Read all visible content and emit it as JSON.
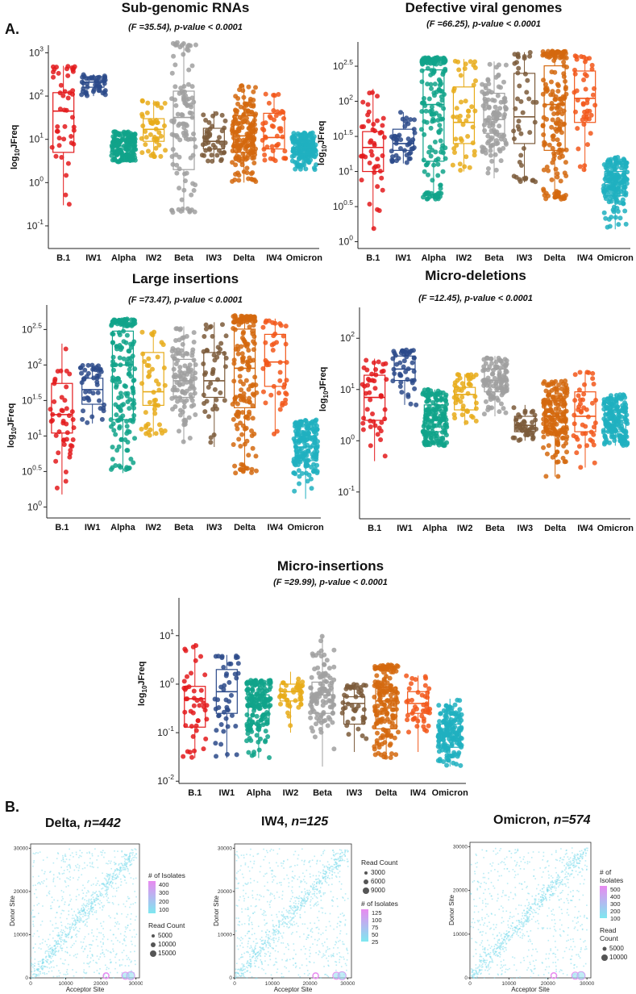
{
  "sections": {
    "a": "A.",
    "b": "B."
  },
  "groups": [
    "B.1",
    "IW1",
    "Alpha",
    "IW2",
    "Beta",
    "IW3",
    "Delta",
    "IW4",
    "Omicron"
  ],
  "group_colors": [
    "#e31a1c",
    "#2b4a8a",
    "#10a38a",
    "#e7ab1a",
    "#a0a0a0",
    "#7b5a3a",
    "#d4680e",
    "#f2571a",
    "#20b0c0"
  ],
  "chart_data": [
    {
      "id": "sgrna",
      "type": "scatter",
      "title": "Sub-genomic RNAs",
      "stat": "(F =35.54), p-value < 0.0001",
      "ylabel_main": "log",
      "ylabel_sub": "10",
      "ylabel_tail": "JFreq",
      "yscale": "log",
      "ylim": [
        0.03,
        1500
      ],
      "yticks": [
        {
          "v": 0.1,
          "l": "10"
        },
        {
          "v": 1,
          "l": "10"
        },
        {
          "v": 10,
          "l": "10"
        },
        {
          "v": 100,
          "l": "10"
        },
        {
          "v": 1000,
          "l": "10"
        }
      ],
      "ytick_exps": [
        "-1",
        "0",
        "1",
        "2",
        "3"
      ],
      "boxes": [
        {
          "group": "B.1",
          "min": 0.3,
          "q1": 5,
          "median": 45,
          "q3": 120,
          "max": 500
        },
        {
          "group": "IW1",
          "min": 100,
          "q1": 160,
          "median": 210,
          "q3": 280,
          "max": 320
        },
        {
          "group": "Alpha",
          "min": 3,
          "q1": 4.5,
          "median": 7,
          "q3": 10,
          "max": 15
        },
        {
          "group": "IW2",
          "min": 4,
          "q1": 9,
          "median": 17,
          "q3": 30,
          "max": 80
        },
        {
          "group": "Beta",
          "min": 0.2,
          "q1": 2,
          "median": 32,
          "q3": 130,
          "max": 1800
        },
        {
          "group": "IW3",
          "min": 3,
          "q1": 6,
          "median": 9,
          "q3": 18,
          "max": 45
        },
        {
          "group": "Delta",
          "min": 1,
          "q1": 5,
          "median": 12,
          "q3": 35,
          "max": 180
        },
        {
          "group": "IW4",
          "min": 3,
          "q1": 6,
          "median": 11,
          "q3": 40,
          "max": 120
        },
        {
          "group": "Omicron",
          "min": 2,
          "q1": 4.5,
          "median": 6.5,
          "q3": 9,
          "max": 15
        }
      ]
    },
    {
      "id": "dvg",
      "type": "scatter",
      "title": "Defective viral genomes",
      "stat": "(F =66.25), p-value < 0.0001",
      "ylabel_main": "log",
      "ylabel_sub": "10",
      "ylabel_tail": "JFreq",
      "yscale": "log",
      "ylim": [
        0.8,
        700
      ],
      "yticks": [
        {
          "v": 1,
          "l": "10"
        },
        {
          "v": 3.16,
          "l": "10"
        },
        {
          "v": 10,
          "l": "10"
        },
        {
          "v": 31.6,
          "l": "10"
        },
        {
          "v": 100,
          "l": "10"
        },
        {
          "v": 316,
          "l": "10"
        }
      ],
      "ytick_exps": [
        "0",
        "0.5",
        "1",
        "1.5",
        "2",
        "2.5"
      ],
      "boxes": [
        {
          "group": "B.1",
          "min": 1.5,
          "q1": 10,
          "median": 22,
          "q3": 37,
          "max": 150
        },
        {
          "group": "IW1",
          "min": 13,
          "q1": 20,
          "median": 25,
          "q3": 40,
          "max": 70
        },
        {
          "group": "Alpha",
          "min": 4,
          "q1": 14,
          "median": 90,
          "q3": 280,
          "max": 420
        },
        {
          "group": "IW2",
          "min": 10,
          "q1": 25,
          "median": 50,
          "q3": 160,
          "max": 400
        },
        {
          "group": "Beta",
          "min": 8,
          "q1": 35,
          "median": 55,
          "q3": 130,
          "max": 370
        },
        {
          "group": "IW3",
          "min": 7,
          "q1": 25,
          "median": 60,
          "q3": 250,
          "max": 500
        },
        {
          "group": "Delta",
          "min": 4,
          "q1": 20,
          "median": 90,
          "q3": 320,
          "max": 520
        },
        {
          "group": "IW4",
          "min": 10,
          "q1": 50,
          "median": 110,
          "q3": 270,
          "max": 450
        },
        {
          "group": "Omicron",
          "min": 1.5,
          "q1": 4.5,
          "median": 7,
          "q3": 10,
          "max": 16
        }
      ]
    },
    {
      "id": "largeins",
      "type": "scatter",
      "title": "Large insertions",
      "stat": "(F =73.47), p-value < 0.0001",
      "ylabel_main": "log",
      "ylabel_sub": "10",
      "ylabel_tail": "JFreq",
      "yscale": "log",
      "ylim": [
        0.7,
        700
      ],
      "yticks": [
        {
          "v": 1,
          "l": "10"
        },
        {
          "v": 3.16,
          "l": "10"
        },
        {
          "v": 10,
          "l": "10"
        },
        {
          "v": 31.6,
          "l": "10"
        },
        {
          "v": 100,
          "l": "10"
        },
        {
          "v": 316,
          "l": "10"
        }
      ],
      "ytick_exps": [
        "0",
        "0.5",
        "1",
        "1.5",
        "2",
        "2.5"
      ],
      "boxes": [
        {
          "group": "B.1",
          "min": 1.5,
          "q1": 11,
          "median": 20,
          "q3": 55,
          "max": 200
        },
        {
          "group": "IW1",
          "min": 15,
          "q1": 28,
          "median": 45,
          "q3": 65,
          "max": 100
        },
        {
          "group": "Alpha",
          "min": 3,
          "q1": 17,
          "median": 100,
          "q3": 300,
          "max": 450
        },
        {
          "group": "IW2",
          "min": 10,
          "q1": 27,
          "median": 42,
          "q3": 150,
          "max": 300
        },
        {
          "group": "Beta",
          "min": 8,
          "q1": 35,
          "median": 60,
          "q3": 120,
          "max": 350
        },
        {
          "group": "IW3",
          "min": 7,
          "q1": 35,
          "median": 60,
          "q3": 150,
          "max": 400
        },
        {
          "group": "Delta",
          "min": 3,
          "q1": 25,
          "median": 90,
          "q3": 320,
          "max": 500
        },
        {
          "group": "IW4",
          "min": 10,
          "q1": 50,
          "median": 110,
          "q3": 270,
          "max": 450
        },
        {
          "group": "Omicron",
          "min": 1.3,
          "q1": 4.5,
          "median": 7,
          "q3": 10,
          "max": 17
        }
      ]
    },
    {
      "id": "microdel",
      "type": "scatter",
      "title": "Micro-deletions",
      "stat": "(F =12.45), p-value < 0.0001",
      "ylabel_main": "log",
      "ylabel_sub": "10",
      "ylabel_tail": "JFreq",
      "yscale": "log",
      "ylim": [
        0.03,
        400
      ],
      "yticks": [
        {
          "v": 0.1,
          "l": "10"
        },
        {
          "v": 1,
          "l": "10"
        },
        {
          "v": 10,
          "l": "10"
        },
        {
          "v": 100,
          "l": "10"
        }
      ],
      "ytick_exps": [
        "-1",
        "0",
        "1",
        "2"
      ],
      "boxes": [
        {
          "group": "B.1",
          "min": 0.4,
          "q1": 2.5,
          "median": 7,
          "q3": 19,
          "max": 40
        },
        {
          "group": "IW1",
          "min": 5,
          "q1": 15,
          "median": 25,
          "q3": 45,
          "max": 60
        },
        {
          "group": "Alpha",
          "min": 0.8,
          "q1": 1.5,
          "median": 2.5,
          "q3": 5,
          "max": 10
        },
        {
          "group": "IW2",
          "min": 2,
          "q1": 4,
          "median": 8,
          "q3": 11,
          "max": 20
        },
        {
          "group": "Beta",
          "min": 3,
          "q1": 9,
          "median": 15,
          "q3": 25,
          "max": 45
        },
        {
          "group": "IW3",
          "min": 1,
          "q1": 1.5,
          "median": 2,
          "q3": 3,
          "max": 5
        },
        {
          "group": "Delta",
          "min": 0.2,
          "q1": 1.5,
          "median": 3,
          "q3": 6,
          "max": 15
        },
        {
          "group": "IW4",
          "min": 0.3,
          "q1": 1.5,
          "median": 3,
          "q3": 9,
          "max": 22
        },
        {
          "group": "Omicron",
          "min": 0.8,
          "q1": 1.5,
          "median": 2.5,
          "q3": 4,
          "max": 8
        }
      ]
    },
    {
      "id": "microins",
      "type": "scatter",
      "title": "Micro-insertions",
      "stat": "(F =29.99), p-value < 0.0001",
      "ylabel_main": "log",
      "ylabel_sub": "10",
      "ylabel_tail": "JFreq",
      "yscale": "log",
      "ylim": [
        0.009,
        60
      ],
      "yticks": [
        {
          "v": 0.01,
          "l": "10"
        },
        {
          "v": 0.1,
          "l": "10"
        },
        {
          "v": 1,
          "l": "10"
        },
        {
          "v": 10,
          "l": "10"
        }
      ],
      "ytick_exps": [
        "-2",
        "-1",
        "0",
        "1"
      ],
      "boxes": [
        {
          "group": "B.1",
          "min": 0.03,
          "q1": 0.13,
          "median": 0.5,
          "q3": 0.9,
          "max": 7
        },
        {
          "group": "IW1",
          "min": 0.03,
          "q1": 0.25,
          "median": 0.7,
          "q3": 2,
          "max": 4
        },
        {
          "group": "Alpha",
          "min": 0.03,
          "q1": 0.15,
          "median": 0.35,
          "q3": 0.6,
          "max": 1.2
        },
        {
          "group": "IW2",
          "min": 0.1,
          "q1": 0.45,
          "median": 0.7,
          "q3": 1,
          "max": 1.8
        },
        {
          "group": "Beta",
          "min": 0.02,
          "q1": 0.25,
          "median": 0.6,
          "q3": 1.1,
          "max": 10
        },
        {
          "group": "IW3",
          "min": 0.04,
          "q1": 0.15,
          "median": 0.4,
          "q3": 0.55,
          "max": 1
        },
        {
          "group": "Delta",
          "min": 0.03,
          "q1": 0.12,
          "median": 0.45,
          "q3": 0.85,
          "max": 2.5
        },
        {
          "group": "IW4",
          "min": 0.04,
          "q1": 0.25,
          "median": 0.4,
          "q3": 0.7,
          "max": 1.5
        },
        {
          "group": "Omicron",
          "min": 0.02,
          "q1": 0.05,
          "median": 0.1,
          "q3": 0.15,
          "max": 0.5
        }
      ]
    }
  ],
  "heatmaps": [
    {
      "id": "delta",
      "title_name": "Delta",
      "title_n": "n=442",
      "xlabel": "Acceptor Site",
      "ylabel": "Donor Site",
      "xticks": [
        "0",
        "10000",
        "20000",
        "30000"
      ],
      "yticks": [
        "0",
        "10000",
        "20000",
        "30000"
      ],
      "legend_iso_title": "# of Isolates",
      "legend_iso": [
        "400",
        "300",
        "200",
        "100"
      ],
      "legend_read_title": "Read Count",
      "legend_read": [
        "5000",
        "10000",
        "15000"
      ]
    },
    {
      "id": "iw4",
      "title_name": "IW4",
      "title_n": "n=125",
      "xlabel": "Acceptor Site",
      "ylabel": "Donor Site",
      "xticks": [
        "0",
        "10000",
        "20000",
        "30000"
      ],
      "yticks": [
        "0",
        "10000",
        "20000",
        "30000"
      ],
      "legend_iso_title": "# of Isolates",
      "legend_iso": [
        "125",
        "100",
        "75",
        "50",
        "25"
      ],
      "legend_read_title": "Read Count",
      "legend_read": [
        "3000",
        "6000",
        "9000"
      ]
    },
    {
      "id": "omicron",
      "title_name": "Omicron",
      "title_n": "n=574",
      "xlabel": "Acceptor Site",
      "ylabel": "Donor Site",
      "xticks": [
        "0",
        "10000",
        "20000",
        "30000"
      ],
      "yticks": [
        "0",
        "10000",
        "20000",
        "30000"
      ],
      "legend_iso_title": "# of Isolates",
      "legend_iso": [
        "500",
        "400",
        "300",
        "200",
        "100"
      ],
      "legend_read_title": "Read Count",
      "legend_read": [
        "5000",
        "10000"
      ]
    }
  ]
}
